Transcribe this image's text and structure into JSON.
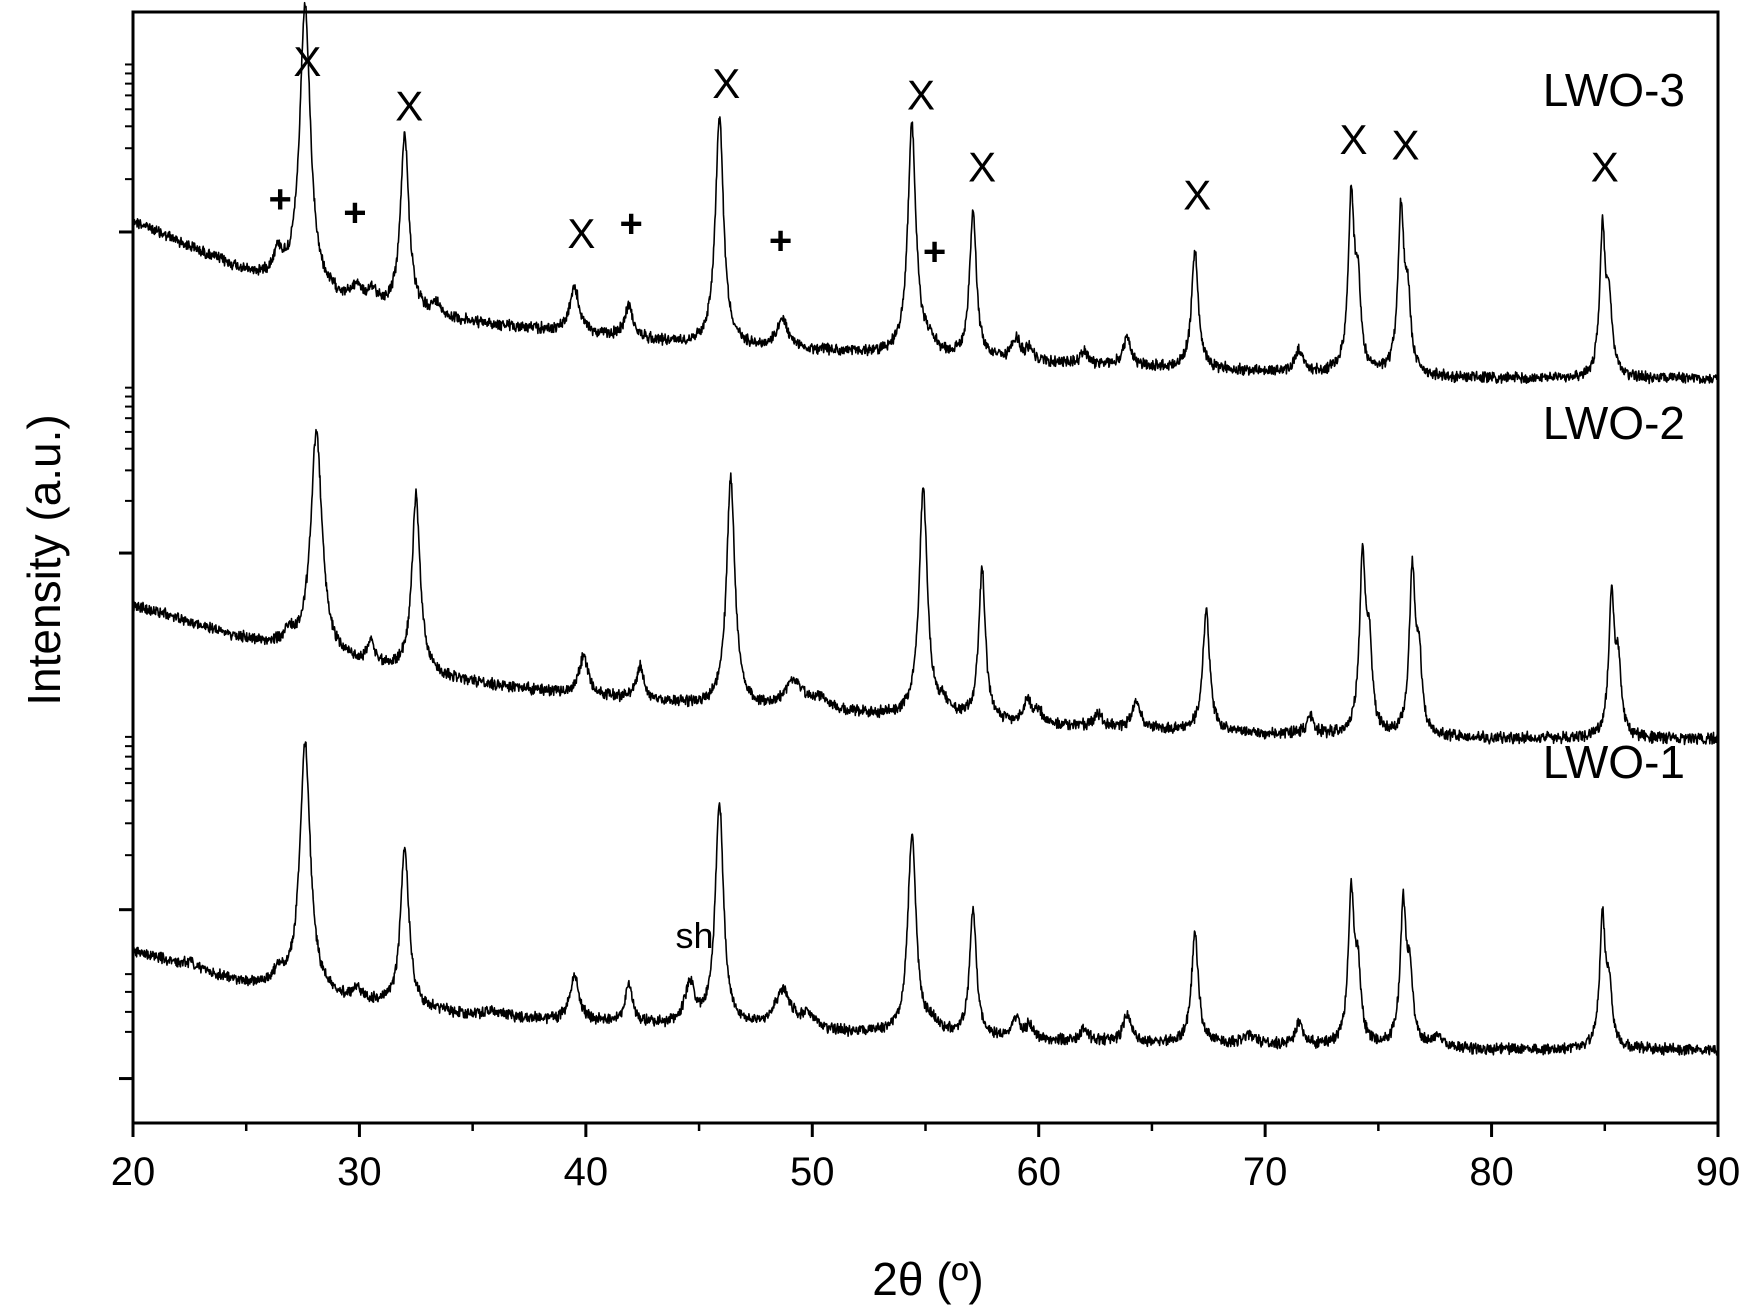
{
  "chart_data": {
    "type": "line",
    "xlabel": "2θ (º)",
    "ylabel": "Intensity (a.u.)",
    "xlim": [
      20,
      90
    ],
    "x_ticks": [
      20,
      30,
      40,
      50,
      60,
      70,
      80,
      90
    ],
    "y_tick_labels": "none",
    "y_axis_style": "log-style minor ticks, unlabeled",
    "grid": false,
    "legend": "inline labels at right",
    "line_color": "#000000",
    "series": [
      {
        "name": "LWO-3",
        "baseline": [
          [
            20,
            0.188
          ],
          [
            25,
            0.235
          ],
          [
            30,
            0.265
          ],
          [
            35,
            0.28
          ],
          [
            40,
            0.29
          ],
          [
            45,
            0.3
          ],
          [
            50,
            0.305
          ],
          [
            55,
            0.31
          ],
          [
            60,
            0.316
          ],
          [
            70,
            0.324
          ],
          [
            80,
            0.33
          ],
          [
            90,
            0.33
          ]
        ],
        "peaks": [
          {
            "x": 26.4,
            "h": 0.022,
            "w": 0.25
          },
          {
            "x": 27.6,
            "h": 0.255,
            "w": 0.28
          },
          {
            "x": 29.9,
            "h": 0.015,
            "w": 0.25
          },
          {
            "x": 30.6,
            "h": 0.012,
            "w": 0.25
          },
          {
            "x": 32.0,
            "h": 0.16,
            "w": 0.22
          },
          {
            "x": 33.4,
            "h": 0.01,
            "w": 0.25
          },
          {
            "x": 39.5,
            "h": 0.04,
            "w": 0.25
          },
          {
            "x": 41.9,
            "h": 0.03,
            "w": 0.2
          },
          {
            "x": 45.9,
            "h": 0.205,
            "w": 0.22
          },
          {
            "x": 48.7,
            "h": 0.025,
            "w": 0.3
          },
          {
            "x": 54.4,
            "h": 0.205,
            "w": 0.22
          },
          {
            "x": 55.2,
            "h": 0.01,
            "w": 0.3
          },
          {
            "x": 57.1,
            "h": 0.13,
            "w": 0.18
          },
          {
            "x": 59.0,
            "h": 0.02,
            "w": 0.2
          },
          {
            "x": 59.6,
            "h": 0.012,
            "w": 0.2
          },
          {
            "x": 62.0,
            "h": 0.012,
            "w": 0.2
          },
          {
            "x": 63.9,
            "h": 0.025,
            "w": 0.2
          },
          {
            "x": 66.9,
            "h": 0.105,
            "w": 0.18
          },
          {
            "x": 71.5,
            "h": 0.02,
            "w": 0.2
          },
          {
            "x": 73.8,
            "h": 0.155,
            "w": 0.16
          },
          {
            "x": 74.1,
            "h": 0.07,
            "w": 0.15
          },
          {
            "x": 76.0,
            "h": 0.145,
            "w": 0.16
          },
          {
            "x": 76.3,
            "h": 0.06,
            "w": 0.15
          },
          {
            "x": 84.9,
            "h": 0.13,
            "w": 0.15
          },
          {
            "x": 85.2,
            "h": 0.06,
            "w": 0.15
          }
        ]
      },
      {
        "name": "LWO-2",
        "baseline": [
          [
            20,
            0.534
          ],
          [
            25,
            0.565
          ],
          [
            30,
            0.588
          ],
          [
            35,
            0.604
          ],
          [
            40,
            0.616
          ],
          [
            45,
            0.624
          ],
          [
            50,
            0.63
          ],
          [
            55,
            0.636
          ],
          [
            60,
            0.642
          ],
          [
            70,
            0.65
          ],
          [
            80,
            0.654
          ],
          [
            90,
            0.654
          ]
        ],
        "peaks": [
          {
            "x": 26.9,
            "h": 0.012,
            "w": 0.25
          },
          {
            "x": 28.1,
            "h": 0.2,
            "w": 0.3
          },
          {
            "x": 30.5,
            "h": 0.02,
            "w": 0.2
          },
          {
            "x": 32.5,
            "h": 0.16,
            "w": 0.22
          },
          {
            "x": 39.9,
            "h": 0.035,
            "w": 0.25
          },
          {
            "x": 42.4,
            "h": 0.03,
            "w": 0.2
          },
          {
            "x": 46.4,
            "h": 0.205,
            "w": 0.22
          },
          {
            "x": 49.2,
            "h": 0.025,
            "w": 0.5
          },
          {
            "x": 50.4,
            "h": 0.01,
            "w": 0.4
          },
          {
            "x": 54.9,
            "h": 0.205,
            "w": 0.22
          },
          {
            "x": 55.8,
            "h": 0.01,
            "w": 0.3
          },
          {
            "x": 57.5,
            "h": 0.135,
            "w": 0.18
          },
          {
            "x": 59.5,
            "h": 0.02,
            "w": 0.2
          },
          {
            "x": 60.0,
            "h": 0.012,
            "w": 0.2
          },
          {
            "x": 62.6,
            "h": 0.012,
            "w": 0.2
          },
          {
            "x": 64.3,
            "h": 0.025,
            "w": 0.2
          },
          {
            "x": 67.4,
            "h": 0.11,
            "w": 0.18
          },
          {
            "x": 72.0,
            "h": 0.015,
            "w": 0.2
          },
          {
            "x": 74.3,
            "h": 0.155,
            "w": 0.16
          },
          {
            "x": 74.6,
            "h": 0.07,
            "w": 0.15
          },
          {
            "x": 76.5,
            "h": 0.145,
            "w": 0.16
          },
          {
            "x": 76.8,
            "h": 0.06,
            "w": 0.15
          },
          {
            "x": 85.3,
            "h": 0.125,
            "w": 0.15
          },
          {
            "x": 85.6,
            "h": 0.06,
            "w": 0.15
          }
        ]
      },
      {
        "name": "LWO-1",
        "baseline": [
          [
            20,
            0.845
          ],
          [
            25,
            0.875
          ],
          [
            30,
            0.893
          ],
          [
            35,
            0.903
          ],
          [
            40,
            0.91
          ],
          [
            45,
            0.914
          ],
          [
            50,
            0.918
          ],
          [
            55,
            0.922
          ],
          [
            60,
            0.926
          ],
          [
            70,
            0.93
          ],
          [
            80,
            0.934
          ],
          [
            90,
            0.934
          ]
        ],
        "peaks": [
          {
            "x": 22.5,
            "h": 0.005,
            "w": 0.2
          },
          {
            "x": 26.4,
            "h": 0.012,
            "w": 0.25
          },
          {
            "x": 27.6,
            "h": 0.225,
            "w": 0.28
          },
          {
            "x": 29.9,
            "h": 0.01,
            "w": 0.3
          },
          {
            "x": 32.0,
            "h": 0.145,
            "w": 0.22
          },
          {
            "x": 35.9,
            "h": 0.006,
            "w": 0.3
          },
          {
            "x": 39.5,
            "h": 0.04,
            "w": 0.25
          },
          {
            "x": 41.9,
            "h": 0.035,
            "w": 0.2
          },
          {
            "x": 44.6,
            "h": 0.035,
            "w": 0.28
          },
          {
            "x": 45.9,
            "h": 0.2,
            "w": 0.22
          },
          {
            "x": 48.7,
            "h": 0.035,
            "w": 0.45
          },
          {
            "x": 49.8,
            "h": 0.012,
            "w": 0.3
          },
          {
            "x": 54.4,
            "h": 0.18,
            "w": 0.22
          },
          {
            "x": 55.3,
            "h": 0.01,
            "w": 0.3
          },
          {
            "x": 57.1,
            "h": 0.115,
            "w": 0.18
          },
          {
            "x": 59.0,
            "h": 0.02,
            "w": 0.2
          },
          {
            "x": 59.6,
            "h": 0.012,
            "w": 0.2
          },
          {
            "x": 62.0,
            "h": 0.012,
            "w": 0.2
          },
          {
            "x": 63.9,
            "h": 0.025,
            "w": 0.2
          },
          {
            "x": 66.9,
            "h": 0.1,
            "w": 0.18
          },
          {
            "x": 69.3,
            "h": 0.008,
            "w": 0.3
          },
          {
            "x": 71.5,
            "h": 0.02,
            "w": 0.2
          },
          {
            "x": 73.8,
            "h": 0.135,
            "w": 0.16
          },
          {
            "x": 74.1,
            "h": 0.06,
            "w": 0.15
          },
          {
            "x": 76.1,
            "h": 0.125,
            "w": 0.16
          },
          {
            "x": 76.4,
            "h": 0.055,
            "w": 0.15
          },
          {
            "x": 77.6,
            "h": 0.01,
            "w": 0.3
          },
          {
            "x": 84.9,
            "h": 0.115,
            "w": 0.15
          },
          {
            "x": 85.2,
            "h": 0.05,
            "w": 0.15
          }
        ]
      }
    ],
    "annotations": [
      {
        "text": "X",
        "kind": "x",
        "x": 27.7,
        "y": 0.045
      },
      {
        "text": "X",
        "kind": "x",
        "x": 32.2,
        "y": 0.085
      },
      {
        "text": "X",
        "kind": "x",
        "x": 46.2,
        "y": 0.065
      },
      {
        "text": "X",
        "kind": "x",
        "x": 54.8,
        "y": 0.075
      },
      {
        "text": "X",
        "kind": "x",
        "x": 57.5,
        "y": 0.14
      },
      {
        "text": "X",
        "kind": "x",
        "x": 67.0,
        "y": 0.165
      },
      {
        "text": "X",
        "kind": "x",
        "x": 73.9,
        "y": 0.115
      },
      {
        "text": "X",
        "kind": "x",
        "x": 76.2,
        "y": 0.12
      },
      {
        "text": "X",
        "kind": "x",
        "x": 85.0,
        "y": 0.14
      },
      {
        "text": "X",
        "kind": "x",
        "x": 39.8,
        "y": 0.2
      },
      {
        "text": "+",
        "kind": "plus",
        "x": 26.5,
        "y": 0.168
      },
      {
        "text": "+",
        "kind": "plus",
        "x": 29.8,
        "y": 0.18
      },
      {
        "text": "+",
        "kind": "plus",
        "x": 42.0,
        "y": 0.19
      },
      {
        "text": "+",
        "kind": "plus",
        "x": 48.6,
        "y": 0.205
      },
      {
        "text": "+",
        "kind": "plus",
        "x": 55.4,
        "y": 0.215
      },
      {
        "text": "sh",
        "kind": "sh",
        "x": 44.8,
        "y": 0.83
      }
    ]
  }
}
